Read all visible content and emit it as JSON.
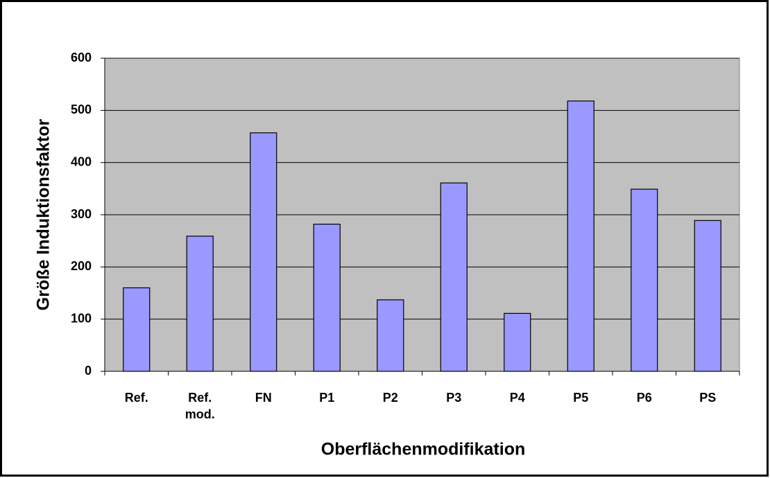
{
  "chart_data": {
    "type": "bar",
    "categories": [
      "Ref.",
      "Ref. mod.",
      "FN",
      "P1",
      "P2",
      "P3",
      "P4",
      "P5",
      "P6",
      "PS"
    ],
    "values": [
      160,
      259,
      457,
      282,
      137,
      361,
      111,
      518,
      349,
      289
    ],
    "color": "#9999ff",
    "xlabel": "Oberflächenmodifikation",
    "ylabel": "Größe Induktionsfaktor",
    "ylim": [
      0,
      600
    ],
    "yticks": [
      0,
      100,
      200,
      300,
      400,
      500,
      600
    ],
    "grid": true,
    "background": "#c0c0c0"
  }
}
